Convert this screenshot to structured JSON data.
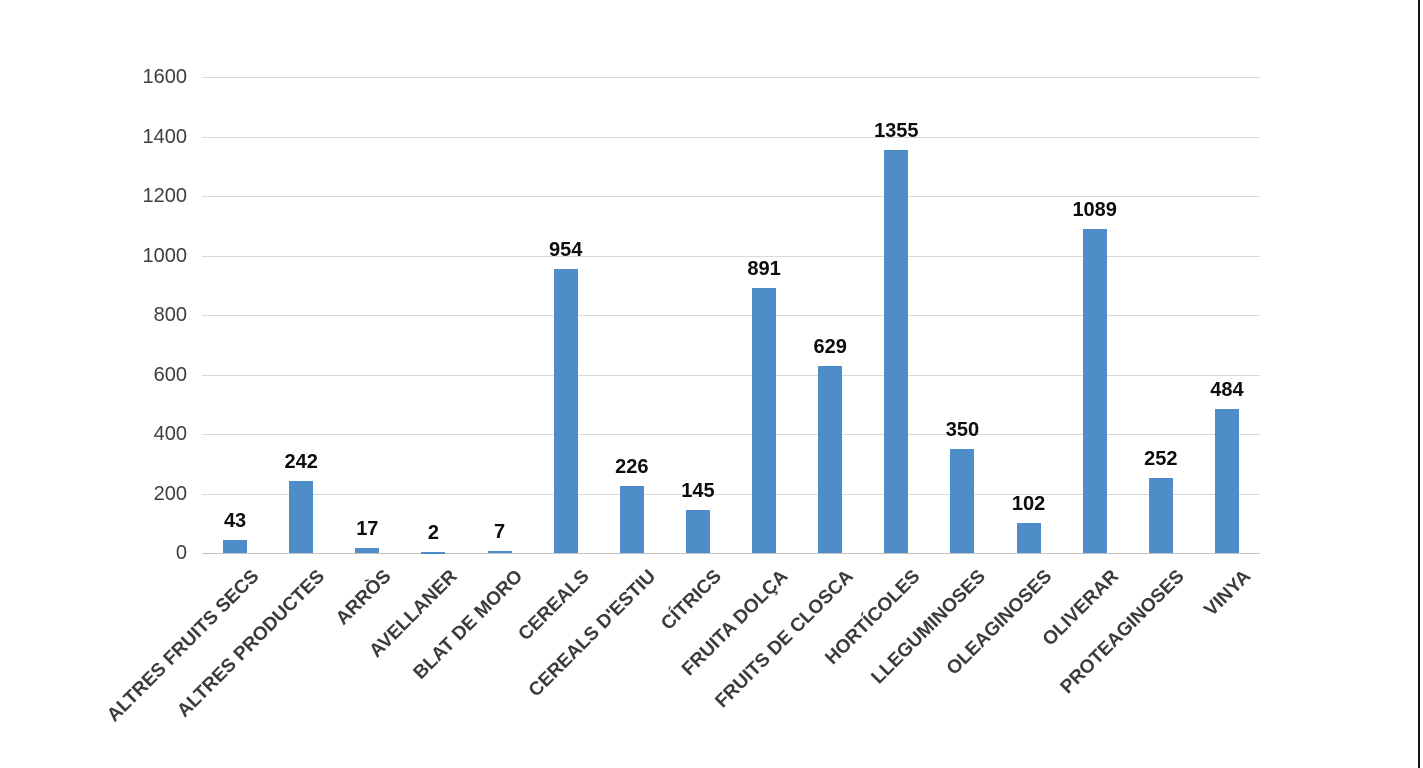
{
  "page": {
    "background_color": "#ffffff",
    "right_edge_rule_color": "#151515"
  },
  "chart_data": {
    "type": "bar",
    "title": "",
    "xlabel": "",
    "ylabel": "",
    "categories": [
      "ALTRES FRUITS SECS",
      "ALTRES PRODUCTES",
      "ARRÒS",
      "AVELLANER",
      "BLAT DE MORO",
      "CEREALS",
      "CEREALS D'ESTIU",
      "CÍTRICS",
      "FRUITA DOLÇA",
      "FRUITS DE CLOSCA",
      "HORTÍCOLES",
      "LLEGUMINOSES",
      "OLEAGINOSES",
      "OLIVERAR",
      "PROTEAGINOSES",
      "VINYA"
    ],
    "values": [
      43,
      242,
      17,
      2,
      7,
      954,
      226,
      145,
      891,
      629,
      1355,
      350,
      102,
      1089,
      252,
      484
    ],
    "data_labels": [
      "43",
      "242",
      "17",
      "2",
      "7",
      "954",
      "226",
      "145",
      "891",
      "629",
      "1355",
      "350",
      "102",
      "1089",
      "252",
      "484"
    ],
    "ylim": [
      0,
      1600
    ],
    "yticks": [
      0,
      200,
      400,
      600,
      800,
      1000,
      1200,
      1400,
      1600
    ],
    "ytick_labels": [
      "0",
      "200",
      "400",
      "600",
      "800",
      "1000",
      "1200",
      "1400",
      "1600"
    ],
    "grid": true,
    "legend": "none",
    "bar_color": "#4f8dc9",
    "gridline_color": "#d9d9d9",
    "axis_text_color": "#3f3f3f",
    "data_label_color": "#0d0d0d",
    "category_label_rotation_deg": -45
  }
}
